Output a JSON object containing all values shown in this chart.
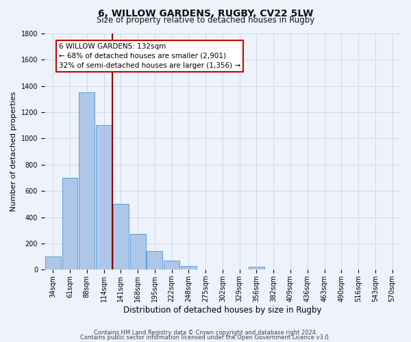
{
  "title": "6, WILLOW GARDENS, RUGBY, CV22 5LW",
  "subtitle": "Size of property relative to detached houses in Rugby",
  "xlabel": "Distribution of detached houses by size in Rugby",
  "ylabel": "Number of detached properties",
  "bin_labels": [
    "34sqm",
    "61sqm",
    "88sqm",
    "114sqm",
    "141sqm",
    "168sqm",
    "195sqm",
    "222sqm",
    "248sqm",
    "275sqm",
    "302sqm",
    "329sqm",
    "356sqm",
    "382sqm",
    "409sqm",
    "436sqm",
    "463sqm",
    "490sqm",
    "516sqm",
    "543sqm",
    "570sqm"
  ],
  "bin_values": [
    100,
    700,
    1350,
    1100,
    500,
    275,
    140,
    70,
    30,
    0,
    0,
    0,
    25,
    0,
    0,
    0,
    0,
    0,
    0,
    0,
    0
  ],
  "bar_color": "#aec6e8",
  "bar_edge_color": "#5a9fd4",
  "vline_x_index": 3.5,
  "vline_color": "#8b0000",
  "annotation_title": "6 WILLOW GARDENS: 132sqm",
  "annotation_line1": "← 68% of detached houses are smaller (2,901)",
  "annotation_line2": "32% of semi-detached houses are larger (1,356) →",
  "annotation_box_color": "#ffffff",
  "annotation_box_edge": "#cc0000",
  "ylim": [
    0,
    1800
  ],
  "yticks": [
    0,
    200,
    400,
    600,
    800,
    1000,
    1200,
    1400,
    1600,
    1800
  ],
  "footer1": "Contains HM Land Registry data © Crown copyright and database right 2024.",
  "footer2": "Contains public sector information licensed under the Open Government Licence v3.0.",
  "bg_color": "#eef2fa",
  "grid_color": "#d0d8e8",
  "title_fontsize": 10,
  "subtitle_fontsize": 8.5,
  "xlabel_fontsize": 8.5,
  "ylabel_fontsize": 8,
  "tick_fontsize": 7,
  "annotation_fontsize": 7.5,
  "footer_fontsize": 6
}
